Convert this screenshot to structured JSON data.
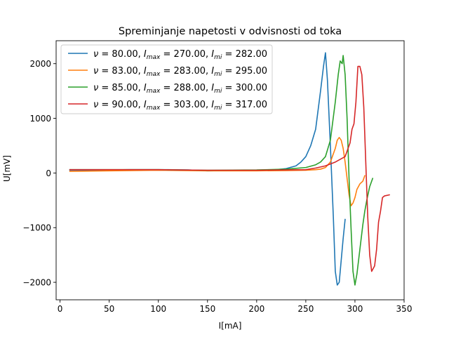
{
  "chart_data": {
    "type": "line",
    "title": "Spreminjanje napetosti v odvisnosti od toka",
    "xlabel": "I[mA]",
    "ylabel": "U[mV]",
    "xlim": [
      -4,
      350
    ],
    "ylim": [
      -2320,
      2420
    ],
    "xticks": [
      0,
      50,
      100,
      150,
      200,
      250,
      300,
      350
    ],
    "yticks": [
      -2000,
      -1000,
      0,
      1000,
      2000
    ],
    "grid": false,
    "legend_position": "upper-left",
    "series": [
      {
        "legend": {
          "nu": "80.00",
          "imax": "270.00",
          "imi": "282.00"
        },
        "color": "#1f77b4",
        "x": [
          10,
          30,
          50,
          70,
          90,
          110,
          130,
          150,
          170,
          190,
          210,
          220,
          230,
          240,
          245,
          250,
          255,
          260,
          265,
          268,
          270,
          272,
          275,
          278,
          280,
          282,
          284,
          286,
          288,
          290
        ],
        "y": [
          50,
          50,
          55,
          60,
          60,
          60,
          55,
          40,
          45,
          50,
          55,
          60,
          80,
          130,
          200,
          300,
          500,
          800,
          1500,
          1950,
          2200,
          1700,
          500,
          -800,
          -1800,
          -2050,
          -2000,
          -1600,
          -1200,
          -850
        ]
      },
      {
        "legend": {
          "nu": "83.00",
          "imax": "283.00",
          "imi": "295.00"
        },
        "color": "#ff7f0e",
        "x": [
          10,
          50,
          100,
          150,
          200,
          230,
          250,
          260,
          265,
          270,
          275,
          280,
          282,
          284,
          286,
          288,
          290,
          292,
          294,
          296,
          298,
          300,
          302,
          305,
          308,
          310
        ],
        "y": [
          30,
          40,
          50,
          40,
          40,
          45,
          50,
          60,
          70,
          100,
          200,
          450,
          600,
          650,
          600,
          450,
          200,
          -100,
          -400,
          -600,
          -550,
          -450,
          -300,
          -200,
          -150,
          -50
        ]
      },
      {
        "legend": {
          "nu": "85.00",
          "imax": "288.00",
          "imi": "300.00"
        },
        "color": "#2ca02c",
        "x": [
          10,
          50,
          100,
          150,
          200,
          230,
          250,
          260,
          265,
          270,
          275,
          280,
          283,
          285,
          287,
          288,
          290,
          292,
          294,
          296,
          298,
          300,
          302,
          305,
          308,
          310,
          312,
          315,
          318
        ],
        "y": [
          60,
          60,
          60,
          50,
          55,
          70,
          100,
          150,
          200,
          300,
          600,
          1300,
          1800,
          2050,
          2000,
          2150,
          1800,
          1000,
          -100,
          -1000,
          -1800,
          -2050,
          -1850,
          -1400,
          -950,
          -700,
          -500,
          -250,
          -100
        ]
      },
      {
        "legend": {
          "nu": "90.00",
          "imax": "303.00",
          "imi": "317.00"
        },
        "color": "#d62728",
        "x": [
          10,
          50,
          100,
          150,
          200,
          250,
          260,
          270,
          280,
          290,
          295,
          297,
          299,
          301,
          303,
          305,
          307,
          309,
          311,
          313,
          315,
          317,
          320,
          322,
          324,
          326,
          328,
          330,
          335
        ],
        "y": [
          60,
          60,
          60,
          50,
          50,
          60,
          90,
          130,
          200,
          300,
          550,
          800,
          900,
          1300,
          1950,
          1950,
          1800,
          1200,
          200,
          -800,
          -1500,
          -1800,
          -1700,
          -1400,
          -900,
          -700,
          -450,
          -420,
          -400
        ]
      }
    ]
  }
}
